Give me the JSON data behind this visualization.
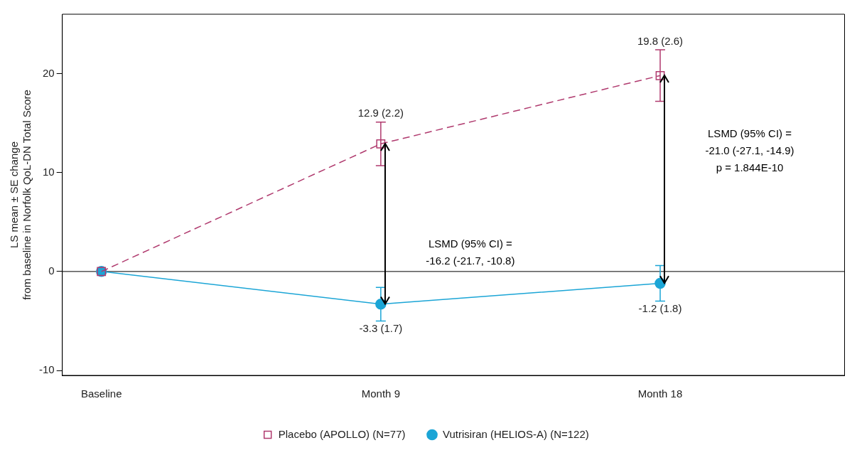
{
  "chart_data": {
    "type": "line",
    "ylabel": "LS mean ± SE change\nfrom baseline in Norfolk QoL-DN Total Score",
    "categories": [
      "Baseline",
      "Month 9",
      "Month 18"
    ],
    "series": [
      {
        "name": "Placebo (APOLLO) (N=77)",
        "color": "#b03a6e",
        "values": [
          0,
          12.9,
          19.8
        ],
        "errors": [
          null,
          2.2,
          2.6
        ],
        "value_labels": [
          null,
          "12.9 (2.2)",
          "19.8 (2.6)"
        ],
        "marker": "square",
        "line_style": "dashed"
      },
      {
        "name": "Vutrisiran (HELIOS-A) (N=122)",
        "color": "#1ba5d6",
        "values": [
          0,
          -3.3,
          -1.2
        ],
        "errors": [
          null,
          1.7,
          1.8
        ],
        "value_labels": [
          null,
          "-3.3 (1.7)",
          "-1.2 (1.8)"
        ],
        "marker": "circle",
        "line_style": "solid"
      }
    ],
    "ylim": [
      -10.5,
      26
    ],
    "yticks": [
      -10,
      0,
      10,
      20
    ],
    "grid": false,
    "legend": "bottom",
    "ref_lines": [
      {
        "axis": "y",
        "value": 0,
        "color": "#000000",
        "line_style": "solid"
      }
    ],
    "annotations": [
      "LSMD (95% CI) =\n-16.2 (-21.7, -10.8)",
      "LSMD (95% CI) =\n-21.0 (-27.1, -14.9)\np = 1.844E-10"
    ]
  }
}
